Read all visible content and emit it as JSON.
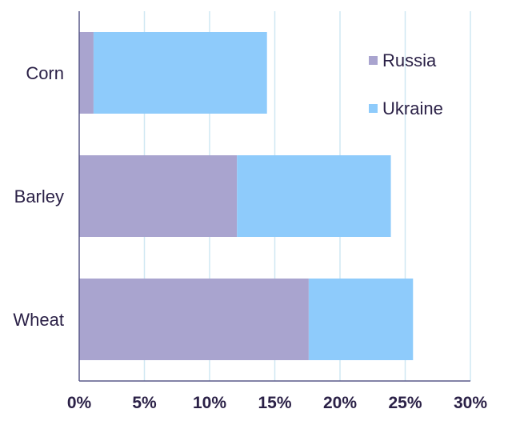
{
  "chart_data": {
    "type": "bar",
    "orientation": "horizontal",
    "stacked": true,
    "categories": [
      "Corn",
      "Barley",
      "Wheat"
    ],
    "series": [
      {
        "name": "Russia",
        "values": [
          1.1,
          12.1,
          17.6
        ],
        "color": "#a9a4cf"
      },
      {
        "name": "Ukraine",
        "values": [
          13.3,
          11.8,
          8.0
        ],
        "color": "#8ecbfb"
      }
    ],
    "x_ticks": [
      "0%",
      "5%",
      "10%",
      "15%",
      "20%",
      "25%",
      "30%"
    ],
    "xlim": [
      0,
      30
    ],
    "grid": true,
    "legend_position": "top-right",
    "gridline_color": "#cfe8f3",
    "axis_color": "#5a5a8a"
  }
}
